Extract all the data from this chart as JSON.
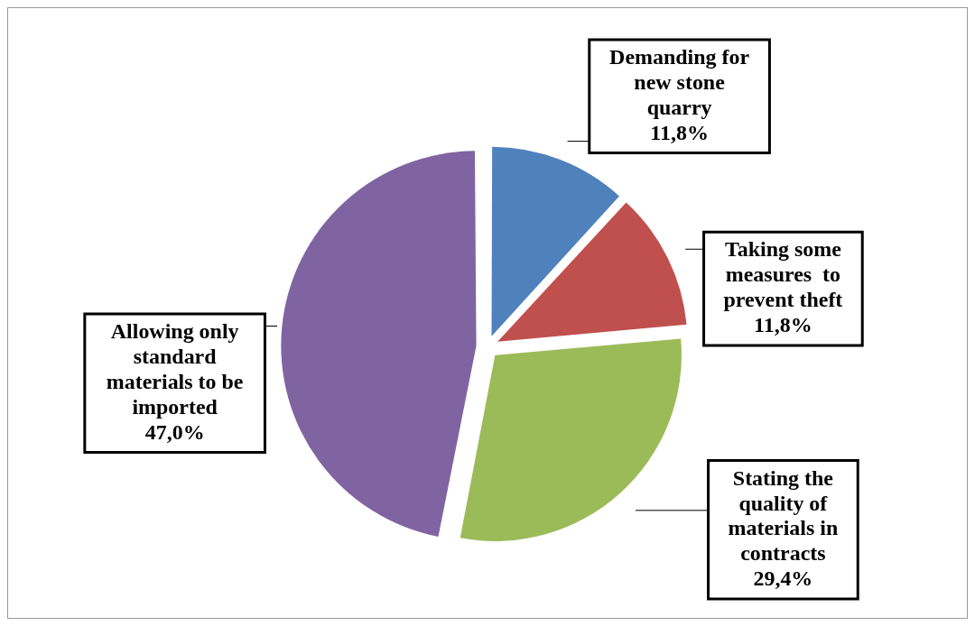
{
  "chart_data": {
    "type": "pie",
    "categories": [
      "Demanding for new stone quarry",
      "Taking some measures  to prevent theft",
      "Stating the quality of materials in contracts",
      "Allowing only standard materials to be imported"
    ],
    "values": [
      11.8,
      11.8,
      29.4,
      47.0
    ],
    "colors": [
      "#4f81bd",
      "#c0504d",
      "#9bbb59",
      "#8064a2"
    ],
    "value_labels": [
      "11,8%",
      "11,8%",
      "29,4%",
      "47,0%"
    ],
    "legend": false
  }
}
